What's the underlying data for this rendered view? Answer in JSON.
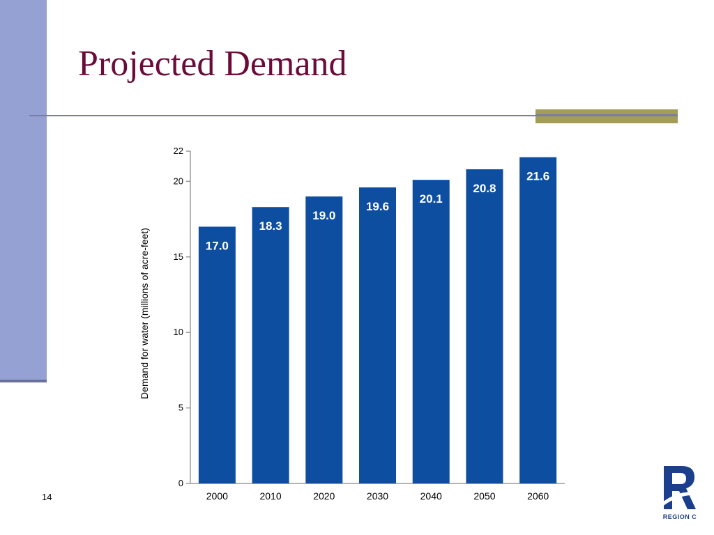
{
  "slide": {
    "title": "Projected Demand",
    "page_number": "14",
    "logo_text": "REGION C",
    "colors": {
      "title": "#6b0b3a",
      "sidebar": "#95a1d3",
      "accent": "#a39e55",
      "bar": "#0d4ea1",
      "logo": "#1b3f8b"
    }
  },
  "chart_data": {
    "type": "bar",
    "categories": [
      "2000",
      "2010",
      "2020",
      "2030",
      "2040",
      "2050",
      "2060"
    ],
    "values": [
      17.0,
      18.3,
      19.0,
      19.6,
      20.1,
      20.8,
      21.6
    ],
    "data_labels": [
      "17.0",
      "18.3",
      "19.0",
      "19.6",
      "20.1",
      "20.8",
      "21.6"
    ],
    "title": "",
    "xlabel": "",
    "ylabel": "Demand for water (millions of acre-feet)",
    "ylim": [
      0,
      22
    ],
    "yticks": [
      0,
      5,
      10,
      15,
      20,
      22
    ],
    "grid": false,
    "legend": "none",
    "bar_color": "#0d4ea1"
  }
}
